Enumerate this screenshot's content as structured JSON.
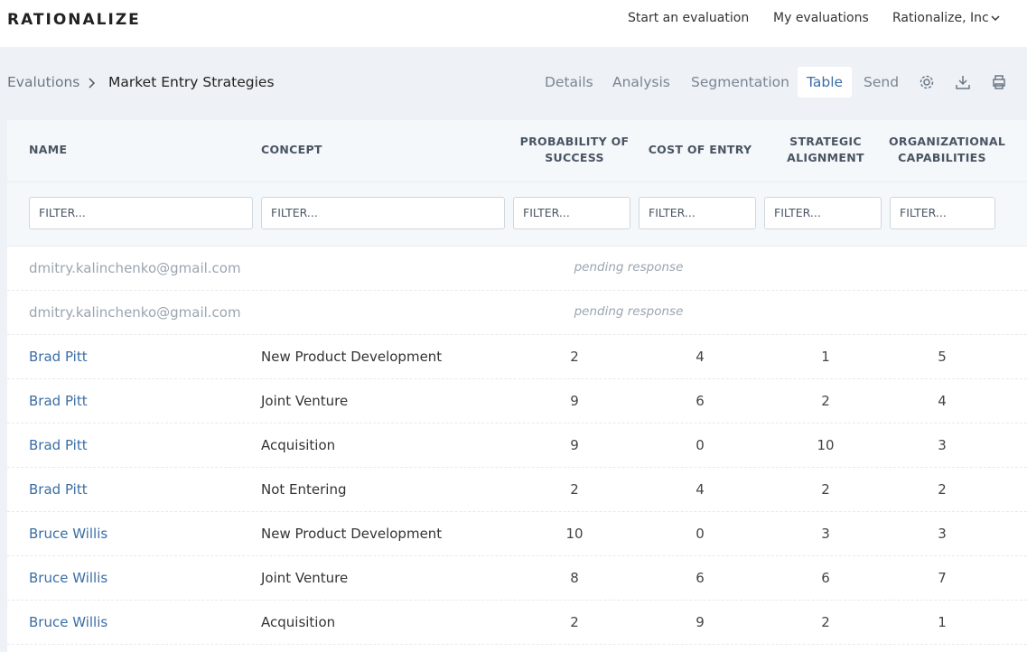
{
  "header": {
    "logo": "RATIONALIZE",
    "nav": [
      "Start an evaluation",
      "My evaluations",
      "Rationalize, Inc"
    ]
  },
  "breadcrumb": [
    "Evalutions",
    "Market Entry Strategies"
  ],
  "tabs": [
    "Details",
    "Analysis",
    "Segmentation",
    "Table",
    "Send"
  ],
  "active_tab": 3,
  "table": {
    "columns": [
      "NAME",
      "CONCEPT",
      "PROBABILITY OF SUCCESS",
      "COST OF ENTRY",
      "STRATEGIC ALIGNMENT",
      "ORGANIZATIONAL CAPABILITIES"
    ],
    "filters": [
      "FILTER...",
      "FILTER...",
      "FILTER...",
      "FILTER...",
      "FILTER...",
      "FILTER..."
    ],
    "rows": [
      {
        "name": "dmitry.kalinchenko@gmail.com",
        "status": "pending response"
      },
      {
        "name": "dmitry.kalinchenko@gmail.com",
        "status": "pending response"
      },
      {
        "name": "Brad Pitt",
        "concept": "New Product Development",
        "values": [
          2,
          4,
          1,
          5
        ]
      },
      {
        "name": "Brad Pitt",
        "concept": "Joint Venture",
        "values": [
          9,
          6,
          2,
          4
        ]
      },
      {
        "name": "Brad Pitt",
        "concept": "Acquisition",
        "values": [
          9,
          0,
          10,
          3
        ]
      },
      {
        "name": "Brad Pitt",
        "concept": "Not Entering",
        "values": [
          2,
          4,
          2,
          2
        ]
      },
      {
        "name": "Bruce Willis",
        "concept": "New Product Development",
        "values": [
          10,
          0,
          3,
          3
        ]
      },
      {
        "name": "Bruce Willis",
        "concept": "Joint Venture",
        "values": [
          8,
          6,
          6,
          7
        ]
      },
      {
        "name": "Bruce Willis",
        "concept": "Acquisition",
        "values": [
          2,
          9,
          2,
          1
        ]
      }
    ]
  }
}
